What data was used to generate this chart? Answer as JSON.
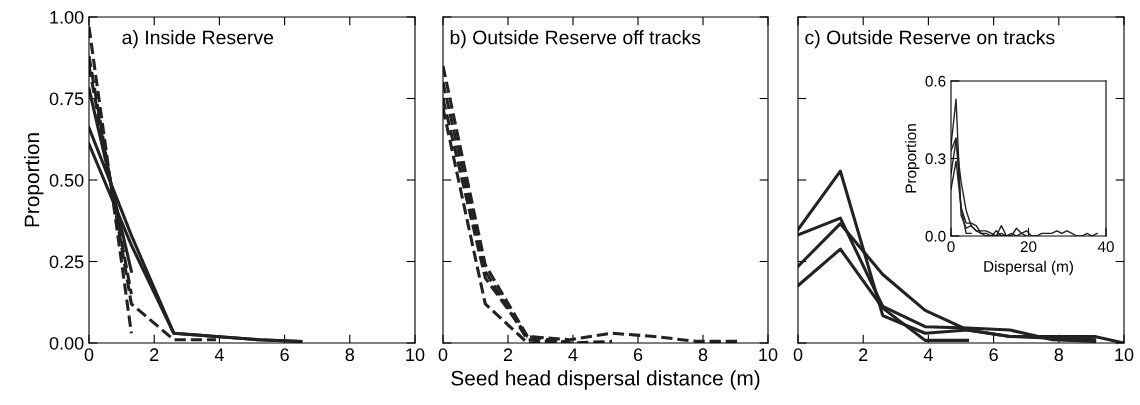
{
  "chart_data": [
    {
      "type": "line",
      "title": "a) Inside Reserve",
      "ylabel": "Proportion",
      "xlim": [
        0,
        10
      ],
      "xticks": [
        0,
        2,
        4,
        6,
        8,
        10
      ],
      "ylim": [
        0,
        1
      ],
      "yticks": [
        {
          "value": 0,
          "label": "0.00"
        },
        {
          "value": 0.25,
          "label": "0.25"
        },
        {
          "value": 0.5,
          "label": "0.50"
        },
        {
          "value": 0.75,
          "label": "0.75"
        },
        {
          "value": 1,
          "label": "1.00"
        }
      ],
      "grid": false,
      "legend": false,
      "series": [
        {
          "color": "#222222",
          "line_style": "solid",
          "x": [
            0,
            1.3,
            2.6,
            3.9,
            5.2,
            6.5
          ],
          "values": [
            0.66,
            0.33,
            0.03,
            0.02,
            0.01,
            0.005
          ]
        },
        {
          "color": "#222222",
          "line_style": "solid",
          "x": [
            0,
            1.3,
            2.6,
            3.9,
            5.2,
            6.5
          ],
          "values": [
            0.61,
            0.3,
            0.03,
            0.02,
            0.01,
            0.005
          ]
        },
        {
          "color": "#222222",
          "line_style": "dashed",
          "x": [
            0,
            1.3
          ],
          "values": [
            0.97,
            0.03
          ]
        },
        {
          "color": "#222222",
          "line_style": "dashed",
          "x": [
            0,
            1.3,
            2.6,
            3.9
          ],
          "values": [
            0.88,
            0.12,
            0.01,
            0.01
          ]
        },
        {
          "color": "#222222",
          "line_style": "solid",
          "x": [
            0,
            1.3
          ],
          "values": [
            0.78,
            0.22
          ]
        },
        {
          "color": "#222222",
          "line_style": "dashed",
          "x": [
            0,
            1.3
          ],
          "values": [
            0.85,
            0.15
          ]
        }
      ]
    },
    {
      "type": "line",
      "title": "b) Outside Reserve off tracks",
      "xlabel": "Seed head dispersal distance (m)",
      "xlim": [
        0,
        10
      ],
      "xticks": [
        0,
        2,
        4,
        6,
        8,
        10
      ],
      "ylim": [
        0,
        1
      ],
      "yticks": [
        0,
        0.25,
        0.5,
        0.75,
        1
      ],
      "tick_labels": "x",
      "grid": false,
      "legend": false,
      "series": [
        {
          "color": "#222222",
          "line_style": "dashed",
          "x": [
            0,
            1.3,
            2.6,
            3.9,
            5.2,
            6.5,
            7.8,
            9.1
          ],
          "values": [
            0.85,
            0.24,
            0.02,
            0.01,
            0.03,
            0.02,
            0.005,
            0.005
          ]
        },
        {
          "color": "#222222",
          "line_style": "dashed",
          "x": [
            0,
            1.3,
            2.6,
            3.9,
            5.2
          ],
          "values": [
            0.8,
            0.22,
            0.01,
            0.0,
            0.005
          ]
        },
        {
          "color": "#222222",
          "line_style": "dashed",
          "x": [
            0,
            1.3,
            2.6,
            3.9
          ],
          "values": [
            0.72,
            0.12,
            0.0,
            0.005
          ]
        },
        {
          "color": "#222222",
          "line_style": "dashed",
          "x": [
            0,
            1.3,
            2.6,
            3.9
          ],
          "values": [
            0.75,
            0.2,
            0.02,
            0.0
          ]
        }
      ]
    },
    {
      "type": "line",
      "title": "c) Outside Reserve on tracks",
      "xlim": [
        0,
        10
      ],
      "xticks": [
        0,
        2,
        4,
        6,
        8,
        10
      ],
      "ylim": [
        0,
        1
      ],
      "yticks": [
        0,
        0.25,
        0.5,
        0.75,
        1
      ],
      "tick_labels": "x",
      "grid": false,
      "legend": false,
      "series": [
        {
          "color": "#222222",
          "line_style": "solid",
          "x": [
            0,
            1.3,
            2.6,
            3.9,
            5.2,
            6.5,
            7.8,
            9.1
          ],
          "values": [
            0.348,
            0.527,
            0.084,
            0.03,
            0.04,
            0.02,
            0.015,
            0.01
          ]
        },
        {
          "color": "#222222",
          "line_style": "solid",
          "x": [
            0,
            1.3,
            2.6,
            3.9,
            5.2,
            6.5,
            7.8,
            9.1
          ],
          "values": [
            0.332,
            0.383,
            0.112,
            0.05,
            0.046,
            0.04,
            0.01,
            0.005
          ]
        },
        {
          "color": "#222222",
          "line_style": "solid",
          "x": [
            0,
            1.3,
            2.6,
            3.9,
            5.2,
            6.5,
            7.8,
            9.1,
            10
          ],
          "values": [
            0.235,
            0.366,
            0.21,
            0.1,
            0.04,
            0.02,
            0.02,
            0.02,
            0.0
          ]
        },
        {
          "color": "#222222",
          "line_style": "solid",
          "x": [
            0,
            1.3,
            2.6,
            3.9,
            5.2
          ],
          "values": [
            0.176,
            0.288,
            0.107,
            0.008,
            0.008
          ]
        }
      ]
    },
    {
      "type": "line",
      "xlabel": "Dispersal (m)",
      "ylabel": "Proportion",
      "xlim": [
        0,
        40
      ],
      "xticks": [
        0,
        20,
        40
      ],
      "ylim": [
        0,
        0.6
      ],
      "yticks": [
        {
          "value": 0,
          "label": "0.0"
        },
        {
          "value": 0.3,
          "label": "0.3"
        },
        {
          "value": 0.6,
          "label": "0.6"
        }
      ],
      "grid": false,
      "legend": false,
      "series": [
        {
          "color": "#222222",
          "line_style": "solid",
          "x": [
            0,
            1.3,
            2.6,
            3.9,
            5.2,
            6.5,
            7.8,
            9.1,
            10.4,
            11.7,
            13,
            14.3,
            15.6
          ],
          "values": [
            0.35,
            0.53,
            0.08,
            0.03,
            0.04,
            0.02,
            0.01,
            0.01,
            0,
            0,
            0.04,
            0,
            0
          ]
        },
        {
          "color": "#222222",
          "line_style": "solid",
          "x": [
            0,
            1.3,
            2.6,
            3.9,
            5.2,
            6.5,
            7.8,
            9.1,
            10.4,
            11.7,
            13,
            14.3,
            15.6,
            16.9,
            18.2,
            19.5
          ],
          "values": [
            0.33,
            0.38,
            0.11,
            0.05,
            0.05,
            0.04,
            0.01,
            0,
            0,
            0.02,
            0,
            0,
            0,
            0.03,
            0.01,
            0
          ]
        },
        {
          "color": "#222222",
          "line_style": "solid",
          "x": [
            0,
            1.3,
            2.6,
            3.9,
            5.2,
            6.5,
            7.8,
            9.1,
            10.4,
            11.7,
            13,
            14.3,
            15.6,
            16.9,
            18.2,
            19.5,
            20.8,
            22.1,
            23.4,
            24.7,
            26,
            27.3,
            28.6,
            29.9,
            31.2,
            32.5,
            33.8,
            35.1,
            36.4,
            37.7
          ],
          "values": [
            0.24,
            0.37,
            0.21,
            0.1,
            0.04,
            0.02,
            0.02,
            0.02,
            0.01,
            0,
            0.01,
            0,
            0.01,
            0,
            0.01,
            0.02,
            0,
            0,
            0.01,
            0.01,
            0.01,
            0.02,
            0.01,
            0.02,
            0.01,
            0,
            0,
            0.01,
            0,
            0.01
          ]
        },
        {
          "color": "#222222",
          "line_style": "solid",
          "x": [
            0,
            1.3,
            2.6,
            3.9,
            5.2
          ],
          "values": [
            0.18,
            0.29,
            0.11,
            0.01,
            0.01
          ]
        }
      ]
    }
  ]
}
